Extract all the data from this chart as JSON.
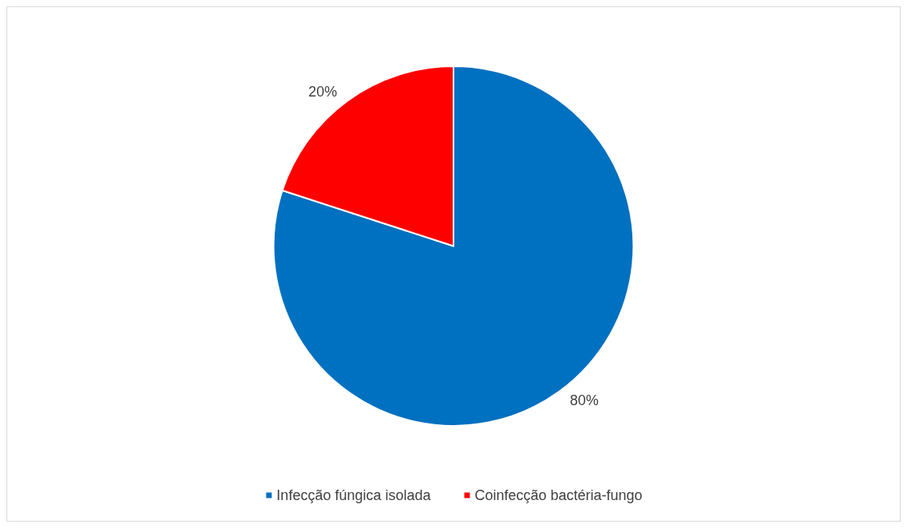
{
  "chart_data": {
    "type": "pie",
    "categories": [
      "Infecção fúngica isolada",
      "Coinfecção bactéria-fungo"
    ],
    "values": [
      80,
      20
    ],
    "colors": [
      "#0070c0",
      "#ff0000"
    ],
    "value_labels": [
      "80%",
      "20%"
    ],
    "legend": "bottom"
  }
}
